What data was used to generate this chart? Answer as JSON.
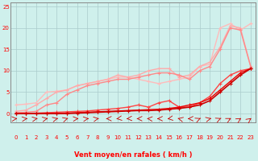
{
  "xlabel": "Vent moyen/en rafales ( km/h )",
  "bg_color": "#cff0ec",
  "grid_color": "#aacccc",
  "axis_color": "#888888",
  "label_color": "#ff0000",
  "xlim": [
    -0.5,
    23.5
  ],
  "ylim": [
    -2,
    26
  ],
  "xticks": [
    0,
    1,
    2,
    3,
    4,
    5,
    6,
    7,
    8,
    9,
    10,
    11,
    12,
    13,
    14,
    15,
    16,
    17,
    18,
    19,
    20,
    21,
    22,
    23
  ],
  "yticks": [
    0,
    5,
    10,
    15,
    20,
    25
  ],
  "lines": [
    {
      "x": [
        0,
        1,
        2,
        3,
        4,
        5,
        6,
        7,
        8,
        9,
        10,
        11,
        12,
        13,
        14,
        15,
        16,
        17,
        18,
        19,
        20,
        21,
        22,
        23
      ],
      "y": [
        2.0,
        2.2,
        2.5,
        5.0,
        5.2,
        5.5,
        6.5,
        7.0,
        7.5,
        8.0,
        8.5,
        8.5,
        8.0,
        7.5,
        7.0,
        7.5,
        8.0,
        8.5,
        11.0,
        11.5,
        20.0,
        21.0,
        19.5,
        21.0
      ],
      "color": "#ffbbbb",
      "lw": 1.0,
      "marker": "+"
    },
    {
      "x": [
        0,
        1,
        2,
        3,
        4,
        5,
        6,
        7,
        8,
        9,
        10,
        11,
        12,
        13,
        14,
        15,
        16,
        17,
        18,
        19,
        20,
        21,
        22,
        23
      ],
      "y": [
        0.5,
        0.8,
        2.0,
        3.5,
        5.0,
        5.5,
        6.5,
        7.0,
        7.5,
        8.0,
        9.0,
        8.5,
        9.0,
        10.0,
        10.5,
        10.5,
        8.5,
        9.0,
        11.0,
        12.0,
        15.5,
        20.5,
        20.0,
        11.0
      ],
      "color": "#ffaaaa",
      "lw": 1.0,
      "marker": "+"
    },
    {
      "x": [
        0,
        1,
        2,
        3,
        4,
        5,
        6,
        7,
        8,
        9,
        10,
        11,
        12,
        13,
        14,
        15,
        16,
        17,
        18,
        19,
        20,
        21,
        22,
        23
      ],
      "y": [
        0.2,
        0.3,
        0.5,
        2.0,
        2.5,
        4.5,
        5.5,
        6.5,
        7.0,
        7.5,
        8.0,
        8.0,
        8.5,
        9.0,
        9.5,
        9.5,
        9.0,
        8.0,
        10.0,
        11.0,
        15.0,
        20.0,
        19.5,
        11.0
      ],
      "color": "#ff8888",
      "lw": 1.0,
      "marker": "+"
    },
    {
      "x": [
        0,
        1,
        2,
        3,
        4,
        5,
        6,
        7,
        8,
        9,
        10,
        11,
        12,
        13,
        14,
        15,
        16,
        17,
        18,
        19,
        20,
        21,
        22,
        23
      ],
      "y": [
        0.0,
        0.0,
        0.1,
        0.2,
        0.3,
        0.4,
        0.5,
        0.6,
        0.8,
        1.0,
        1.2,
        1.5,
        2.0,
        1.5,
        2.5,
        3.0,
        1.5,
        1.5,
        2.5,
        4.0,
        7.0,
        9.0,
        10.0,
        10.5
      ],
      "color": "#ff4444",
      "lw": 1.0,
      "marker": "+"
    },
    {
      "x": [
        0,
        1,
        2,
        3,
        4,
        5,
        6,
        7,
        8,
        9,
        10,
        11,
        12,
        13,
        14,
        15,
        16,
        17,
        18,
        19,
        20,
        21,
        22,
        23
      ],
      "y": [
        0.0,
        0.0,
        0.0,
        0.0,
        0.0,
        0.1,
        0.2,
        0.3,
        0.4,
        0.5,
        0.6,
        0.7,
        0.8,
        0.9,
        1.0,
        1.2,
        1.5,
        2.0,
        2.5,
        3.5,
        5.5,
        7.5,
        9.5,
        10.5
      ],
      "color": "#ee0000",
      "lw": 1.0,
      "marker": "+"
    },
    {
      "x": [
        0,
        1,
        2,
        3,
        4,
        5,
        6,
        7,
        8,
        9,
        10,
        11,
        12,
        13,
        14,
        15,
        16,
        17,
        18,
        19,
        20,
        21,
        22,
        23
      ],
      "y": [
        0.0,
        0.0,
        0.0,
        0.0,
        0.0,
        0.0,
        0.1,
        0.2,
        0.3,
        0.4,
        0.5,
        0.6,
        0.7,
        0.7,
        0.8,
        1.0,
        1.2,
        1.5,
        2.0,
        3.0,
        5.0,
        7.0,
        9.0,
        10.5
      ],
      "color": "#cc0000",
      "lw": 1.2,
      "marker": "+"
    }
  ],
  "arrow_angles": [
    10,
    15,
    20,
    25,
    30,
    35,
    10,
    15,
    20,
    180,
    200,
    190,
    180,
    170,
    180,
    200,
    150,
    180,
    45,
    30,
    45,
    50,
    55,
    60
  ],
  "wind_arrow_color": "#cc0000"
}
